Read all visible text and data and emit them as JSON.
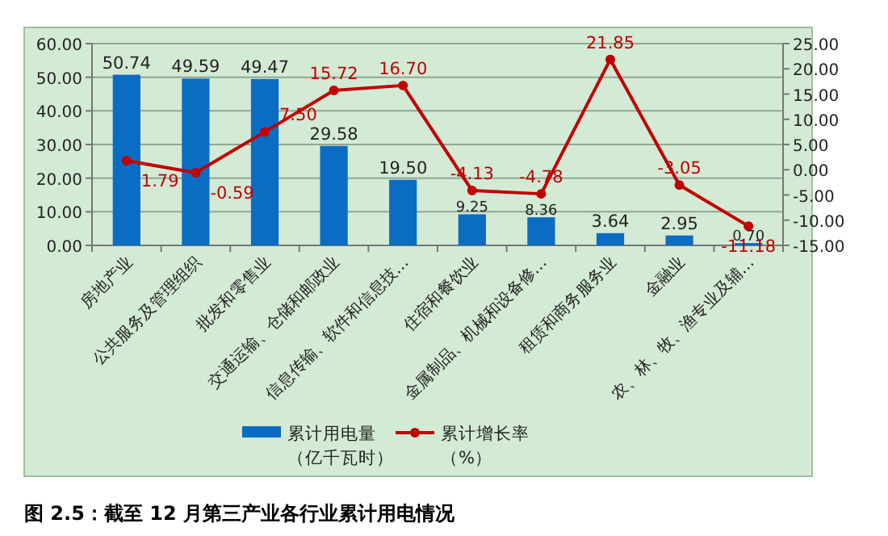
{
  "chart_data": {
    "type": "bar",
    "title": "图 2.5：截至 12 月第三产业各行业累计用电情况",
    "categories": [
      "房地产业",
      "公共服务及管理组织",
      "批发和零售业",
      "交通运输、仓储和邮政业",
      "信息传输、软件和信息技…",
      "住宿和餐饮业",
      "金属制品、机械和设备修…",
      "租赁和商务服务业",
      "金融业",
      "农、林、牧、渔专业及辅…"
    ],
    "series": [
      {
        "name": "累计用电量（亿千瓦时）",
        "color": "#0b6cc4",
        "values": [
          50.74,
          49.59,
          49.47,
          29.58,
          19.5,
          9.25,
          8.36,
          3.64,
          2.95,
          0.7
        ],
        "value_labels": [
          "50.74",
          "49.59",
          "49.47",
          "29.58",
          "19.50",
          "9.25",
          "8.36",
          "3.64",
          "2.95",
          "0.70"
        ]
      },
      {
        "name": "累计增长率（%）",
        "type": "line",
        "axis": "y2",
        "color": "#c00000",
        "marker": "circle",
        "values": [
          1.79,
          -0.59,
          7.5,
          15.72,
          16.7,
          -4.13,
          -4.78,
          21.85,
          -3.05,
          -11.18
        ],
        "value_labels": [
          "1.79",
          "-0.59",
          "7.50",
          "15.72",
          "16.70",
          "-4.13",
          "-4.78",
          "21.85",
          "-3.05",
          "-11.18"
        ]
      }
    ],
    "ylim": [
      0,
      60
    ],
    "yticks": [
      {
        "value": 0,
        "label": "0.00"
      },
      {
        "value": 10,
        "label": "10.00"
      },
      {
        "value": 20,
        "label": "20.00"
      },
      {
        "value": 30,
        "label": "30.00"
      },
      {
        "value": 40,
        "label": "40.00"
      },
      {
        "value": 50,
        "label": "50.00"
      },
      {
        "value": 60,
        "label": "60.00"
      }
    ],
    "y2lim": [
      -15,
      25
    ],
    "y2ticks": [
      {
        "value": -15,
        "label": "-15.00"
      },
      {
        "value": -10,
        "label": "-10.00"
      },
      {
        "value": -5,
        "label": "-5.00"
      },
      {
        "value": 0,
        "label": "0.00"
      },
      {
        "value": 5,
        "label": "5.00"
      },
      {
        "value": 10,
        "label": "10.00"
      },
      {
        "value": 15,
        "label": "15.00"
      },
      {
        "value": 20,
        "label": "20.00"
      },
      {
        "value": 25,
        "label": "25.00"
      }
    ],
    "grid": "y",
    "legend": "bottom"
  }
}
